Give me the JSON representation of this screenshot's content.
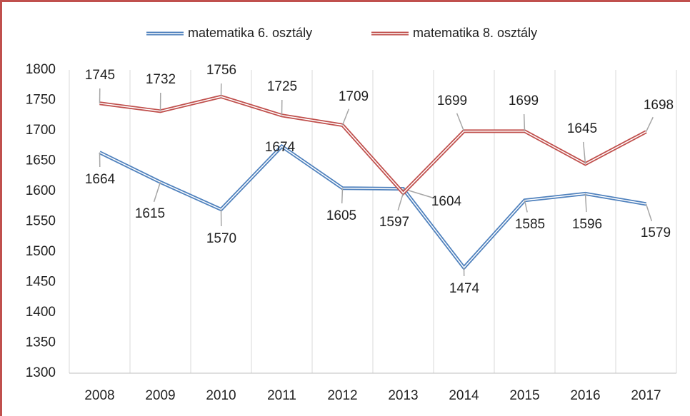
{
  "chart_data": {
    "type": "line",
    "categories": [
      "2008",
      "2009",
      "2010",
      "2011",
      "2012",
      "2013",
      "2014",
      "2015",
      "2016",
      "2017"
    ],
    "series": [
      {
        "name": "matematika 6. osztály",
        "color": "#4f81bd",
        "values": [
          1664,
          1615,
          1570,
          1674,
          1605,
          1604,
          1474,
          1585,
          1596,
          1579
        ]
      },
      {
        "name": "matematika 8. osztály",
        "color": "#c0504d",
        "values": [
          1745,
          1732,
          1756,
          1725,
          1709,
          1597,
          1699,
          1699,
          1645,
          1698
        ]
      }
    ],
    "ylim": [
      1300,
      1800
    ],
    "yticks": [
      1300,
      1350,
      1400,
      1450,
      1500,
      1550,
      1600,
      1650,
      1700,
      1750,
      1800
    ],
    "grid": "x",
    "legend": "top"
  }
}
